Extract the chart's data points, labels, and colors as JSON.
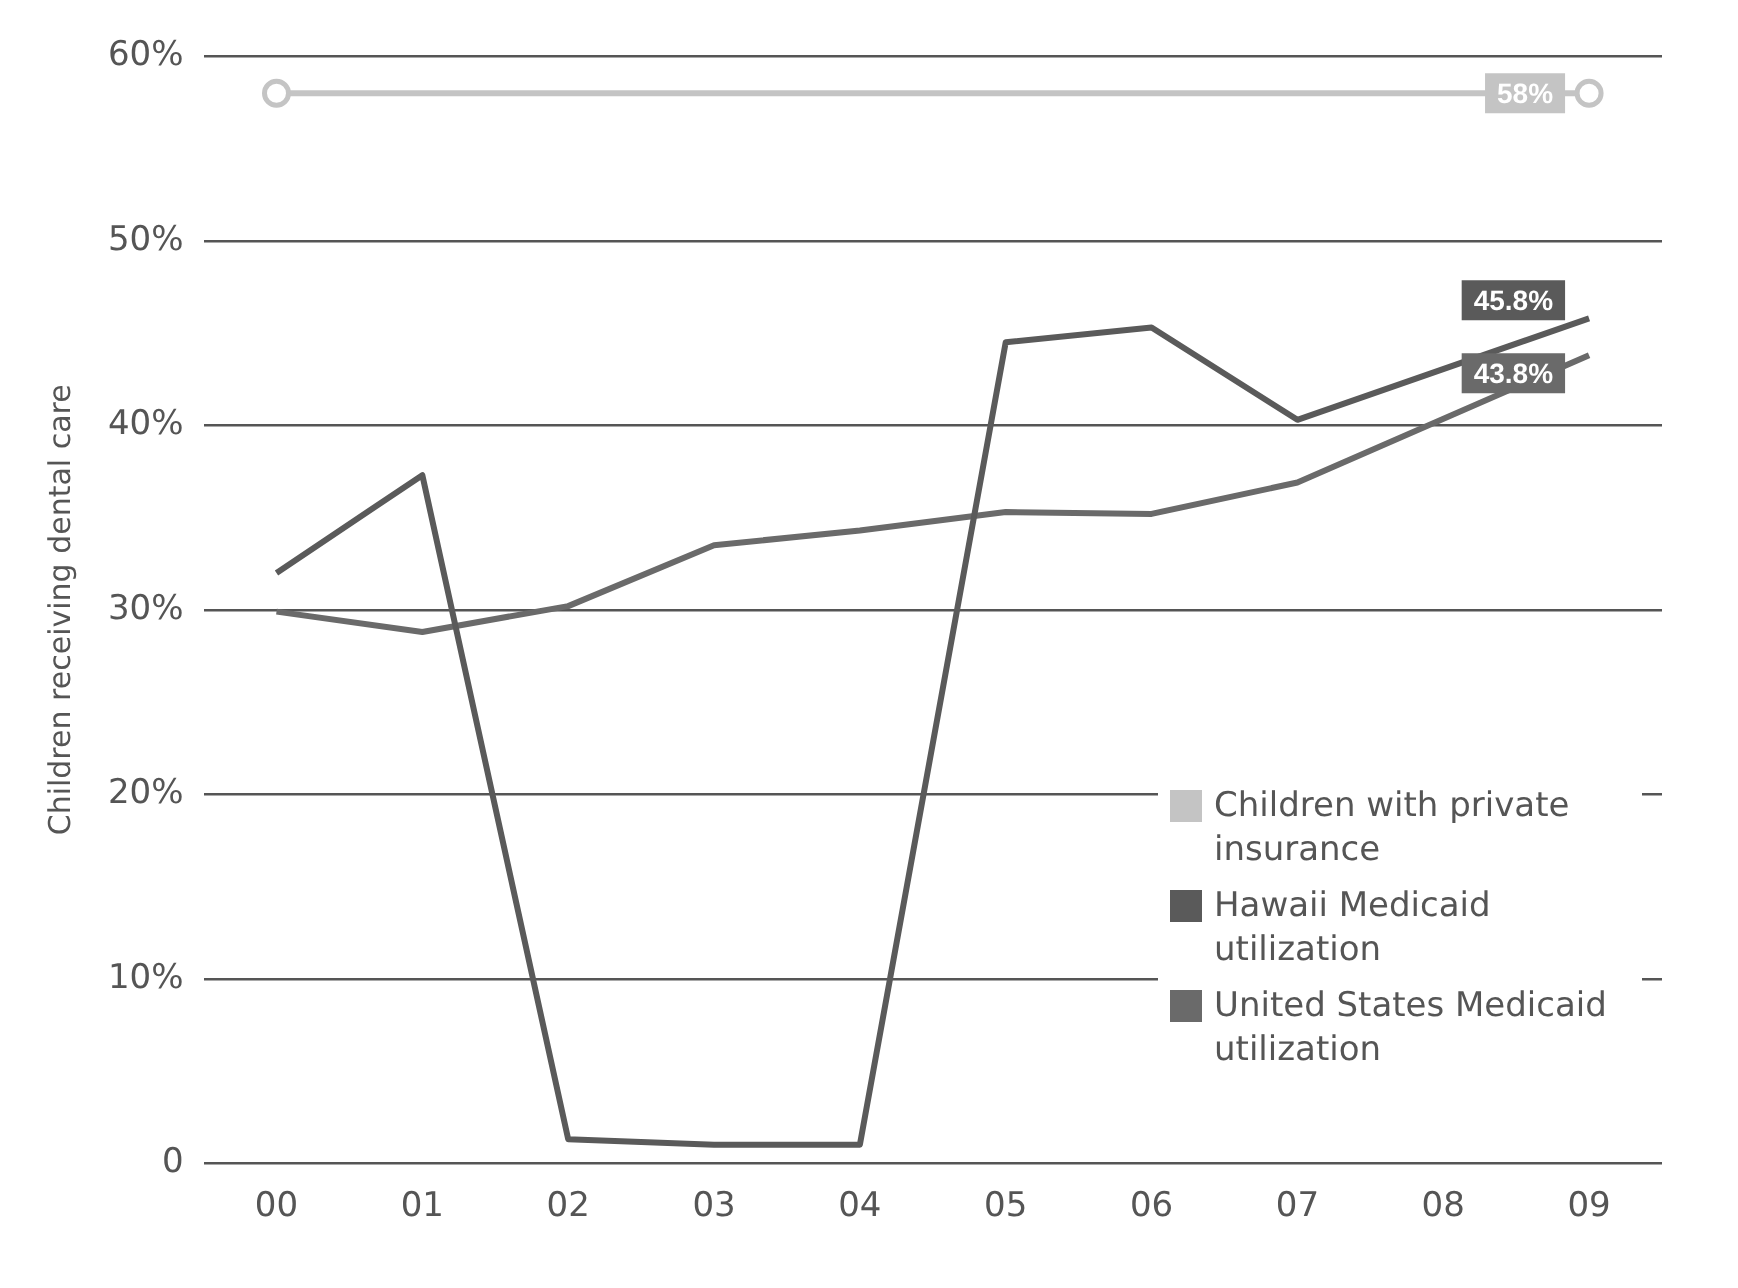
{
  "chart_data": {
    "type": "line",
    "ylabel": "Children receiving dental care",
    "categories": [
      "00",
      "01",
      "02",
      "03",
      "04",
      "05",
      "06",
      "07",
      "08",
      "09"
    ],
    "series": [
      {
        "name": "Children with private insurance",
        "color": "#c4c4c4",
        "marker": "circle",
        "values": [
          58,
          null,
          null,
          null,
          null,
          null,
          null,
          null,
          null,
          58
        ],
        "value_labels": [
          null,
          null,
          null,
          null,
          null,
          null,
          null,
          null,
          null,
          "58%"
        ]
      },
      {
        "name": "Hawaii Medicaid utilization",
        "color": "#5a5a5a",
        "values": [
          32,
          37.3,
          1.3,
          1,
          1,
          44.5,
          45.3,
          40.3,
          null,
          45.8
        ],
        "value_labels": [
          null,
          null,
          null,
          null,
          null,
          null,
          null,
          null,
          null,
          "45.8%"
        ]
      },
      {
        "name": "United States Medicaid utilization",
        "color": "#6a6a6a",
        "values": [
          29.9,
          28.8,
          30.2,
          33.5,
          34.3,
          35.3,
          35.2,
          36.9,
          null,
          43.8
        ],
        "value_labels": [
          null,
          null,
          null,
          null,
          null,
          null,
          null,
          null,
          null,
          "43.8%"
        ]
      }
    ],
    "ylim": [
      0,
      60
    ],
    "yticks": [
      {
        "value": 0,
        "label": "0"
      },
      {
        "value": 10,
        "label": "10%"
      },
      {
        "value": 20,
        "label": "20%"
      },
      {
        "value": 30,
        "label": "30%"
      },
      {
        "value": 40,
        "label": "40%"
      },
      {
        "value": 50,
        "label": "50%"
      },
      {
        "value": 60,
        "label": "60%"
      }
    ],
    "grid": "y",
    "legend": "bottom right",
    "line_style": "solid"
  }
}
